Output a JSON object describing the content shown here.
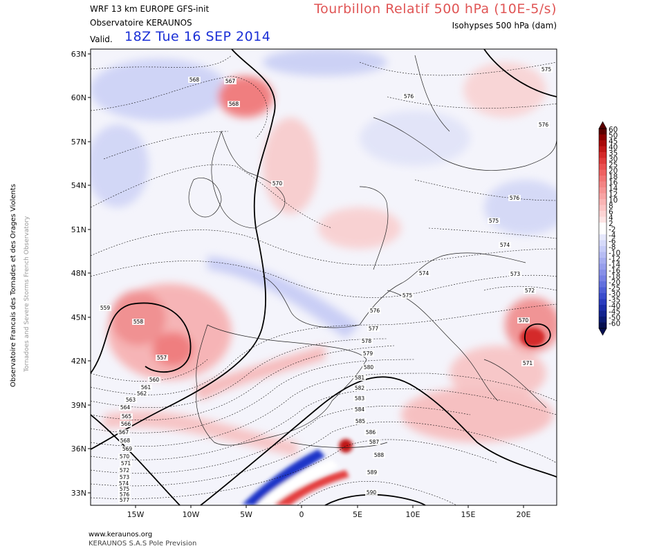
{
  "header": {
    "model_line": "WRF 13 km EUROPE   GFS-init",
    "org_line": "Observatoire KERAUNOS",
    "valid_label": "Valid.",
    "valid_date": "18Z Tue 16 SEP 2014",
    "title": "Tourbillon Relatif 500 hPa (10E-5/s)",
    "subtitle": "Isohypses 500 hPa (dam)"
  },
  "side": {
    "text1": "Observatoire Francais des Tornades et des Orages Violents",
    "text2": "Tornadoes and Severe Storms French Observatory"
  },
  "footer": {
    "url": "www.keraunos.org",
    "org": "KERAUNOS S.A.S Pole Prevision"
  },
  "axes": {
    "lat_labels": [
      "63N",
      "60N",
      "57N",
      "54N",
      "51N",
      "48N",
      "45N",
      "42N",
      "39N",
      "36N",
      "33N"
    ],
    "lon_labels": [
      "15W",
      "10W",
      "5W",
      "0",
      "5E",
      "10E",
      "15E",
      "20E"
    ]
  },
  "colorbar": {
    "labels": [
      "60",
      "50",
      "45",
      "40",
      "35",
      "30",
      "25",
      "20",
      "18",
      "16",
      "14",
      "12",
      "10",
      "8",
      "6",
      "4",
      "2",
      "-2",
      "-4",
      "-6",
      "-8",
      "-10",
      "-12",
      "-14",
      "-16",
      "-18",
      "-20",
      "-25",
      "-30",
      "-35",
      "-40",
      "-45",
      "-50",
      "-60"
    ],
    "colors": [
      "#5c0000",
      "#8a0000",
      "#a80a0a",
      "#c01818",
      "#d42a2a",
      "#e03c3c",
      "#ea5050",
      "#ef6262",
      "#f27474",
      "#f48484",
      "#f69494",
      "#f8a4a4",
      "#fab4b4",
      "#fcc4c4",
      "#fdd4d4",
      "#fee4e4",
      "#ffffff",
      "#ffffff",
      "#e6e8fc",
      "#d6dafa",
      "#c6ccf8",
      "#b6bcf4",
      "#a6adf0",
      "#969eec",
      "#868fe8",
      "#7680e4",
      "#6270de",
      "#4e5ed6",
      "#3a4ccc",
      "#2a3cbe",
      "#1c2ea8",
      "#12238e",
      "#0a1a72",
      "#050f50"
    ]
  },
  "contour_labels": [
    {
      "text": "568"
    },
    {
      "text": "567"
    },
    {
      "text": "568"
    },
    {
      "text": "576"
    },
    {
      "text": "575"
    },
    {
      "text": "576"
    },
    {
      "text": "570"
    },
    {
      "text": "576"
    },
    {
      "text": "575"
    },
    {
      "text": "574"
    },
    {
      "text": "573"
    },
    {
      "text": "572"
    },
    {
      "text": "574"
    },
    {
      "text": "575"
    },
    {
      "text": "576"
    },
    {
      "text": "577"
    },
    {
      "text": "578"
    },
    {
      "text": "579"
    },
    {
      "text": "580"
    },
    {
      "text": "581"
    },
    {
      "text": "582"
    },
    {
      "text": "583"
    },
    {
      "text": "584"
    },
    {
      "text": "585"
    },
    {
      "text": "586"
    },
    {
      "text": "587"
    },
    {
      "text": "588"
    },
    {
      "text": "589"
    },
    {
      "text": "590"
    },
    {
      "text": "570"
    },
    {
      "text": "571"
    },
    {
      "text": "559"
    },
    {
      "text": "558"
    },
    {
      "text": "557"
    },
    {
      "text": "560"
    },
    {
      "text": "561"
    },
    {
      "text": "562"
    },
    {
      "text": "563"
    },
    {
      "text": "564"
    },
    {
      "text": "565"
    },
    {
      "text": "566"
    },
    {
      "text": "567"
    },
    {
      "text": "568"
    },
    {
      "text": "569"
    },
    {
      "text": "570"
    },
    {
      "text": "571"
    },
    {
      "text": "572"
    },
    {
      "text": "573"
    },
    {
      "text": "574"
    },
    {
      "text": "575"
    },
    {
      "text": "576"
    },
    {
      "text": "577"
    }
  ]
}
